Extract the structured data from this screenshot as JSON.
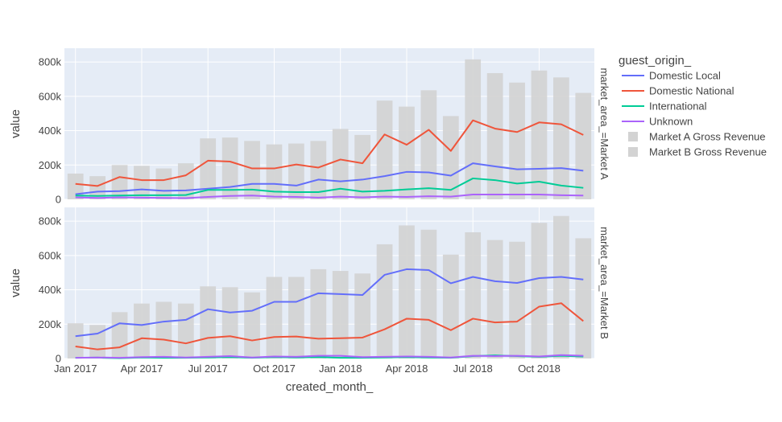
{
  "chart_data": {
    "type": "bar+line",
    "xlabel": "created_month_",
    "ylabel": "value",
    "x": [
      "2017-01",
      "2017-02",
      "2017-03",
      "2017-04",
      "2017-05",
      "2017-06",
      "2017-07",
      "2017-08",
      "2017-09",
      "2017-10",
      "2017-11",
      "2017-12",
      "2018-01",
      "2018-02",
      "2018-03",
      "2018-04",
      "2018-05",
      "2018-06",
      "2018-07",
      "2018-08",
      "2018-09",
      "2018-10",
      "2018-11",
      "2018-12"
    ],
    "x_tick_labels": [
      "Jan 2017",
      "Apr 2017",
      "Jul 2017",
      "Oct 2017",
      "Jan 2018",
      "Apr 2018",
      "Jul 2018",
      "Oct 2018"
    ],
    "y_tick_labels": [
      "0",
      "200k",
      "400k",
      "600k",
      "800k"
    ],
    "ylim": [
      0,
      880000
    ],
    "grid": true,
    "legend": {
      "title": "guest_origin_",
      "position": "right",
      "items": [
        {
          "name": "Domestic Local",
          "color": "#636EFA",
          "kind": "line"
        },
        {
          "name": "Domestic National",
          "color": "#EF553B",
          "kind": "line"
        },
        {
          "name": "International",
          "color": "#00CC96",
          "kind": "line"
        },
        {
          "name": "Unknown",
          "color": "#AB63FA",
          "kind": "line"
        },
        {
          "name": "Market A Gross Revenue",
          "color": "#D3D3D3",
          "kind": "bar"
        },
        {
          "name": "Market B Gross Revenue",
          "color": "#D3D3D3",
          "kind": "bar"
        }
      ]
    },
    "facets": [
      {
        "label": "market_area_=Market A",
        "bar_name": "Market A Gross Revenue",
        "bars": [
          150000,
          135000,
          200000,
          195000,
          180000,
          210000,
          355000,
          360000,
          340000,
          320000,
          325000,
          340000,
          410000,
          375000,
          575000,
          540000,
          635000,
          485000,
          815000,
          735000,
          680000,
          750000,
          710000,
          620000
        ],
        "series": [
          {
            "name": "Domestic Local",
            "values": [
              30000,
              45000,
              48000,
              58000,
              50000,
              52000,
              62000,
              72000,
              90000,
              90000,
              80000,
              115000,
              105000,
              115000,
              135000,
              160000,
              157000,
              138000,
              210000,
              192000,
              175000,
              178000,
              182000,
              167000
            ]
          },
          {
            "name": "Domestic National",
            "values": [
              90000,
              78000,
              130000,
              112000,
              112000,
              140000,
              225000,
              220000,
              180000,
              180000,
              203000,
              185000,
              232000,
              210000,
              378000,
              318000,
              405000,
              282000,
              460000,
              412000,
              392000,
              448000,
              437000,
              375000
            ]
          },
          {
            "name": "International",
            "values": [
              22000,
              20000,
              22000,
              24000,
              24000,
              25000,
              55000,
              55000,
              57000,
              45000,
              42000,
              42000,
              62000,
              45000,
              50000,
              58000,
              65000,
              55000,
              122000,
              112000,
              92000,
              103000,
              80000,
              67000
            ]
          },
          {
            "name": "Unknown",
            "values": [
              12000,
              8000,
              12000,
              10000,
              8000,
              7000,
              14000,
              20000,
              22000,
              16000,
              14000,
              10000,
              16000,
              12000,
              16000,
              14000,
              18000,
              16000,
              28000,
              28000,
              28000,
              28000,
              24000,
              22000
            ]
          }
        ]
      },
      {
        "label": "market_area_=Market B",
        "bar_name": "Market B Gross Revenue",
        "bars": [
          205000,
          195000,
          270000,
          320000,
          330000,
          320000,
          420000,
          415000,
          385000,
          475000,
          475000,
          520000,
          510000,
          495000,
          665000,
          775000,
          750000,
          605000,
          735000,
          690000,
          680000,
          790000,
          830000,
          700000
        ],
        "series": [
          {
            "name": "Domestic Local",
            "values": [
              130000,
              145000,
              205000,
              195000,
              215000,
              225000,
              287000,
              268000,
              278000,
              330000,
              330000,
              380000,
              375000,
              370000,
              487000,
              520000,
              515000,
              438000,
              475000,
              450000,
              440000,
              468000,
              475000,
              460000
            ]
          },
          {
            "name": "Domestic National",
            "values": [
              70000,
              53000,
              65000,
              118000,
              110000,
              88000,
              120000,
              130000,
              105000,
              125000,
              128000,
              115000,
              118000,
              122000,
              170000,
              232000,
              225000,
              165000,
              232000,
              210000,
              215000,
              302000,
              322000,
              218000
            ]
          },
          {
            "name": "International",
            "values": [
              4000,
              5000,
              2000,
              6000,
              4000,
              4000,
              6000,
              8000,
              4000,
              8000,
              6000,
              8000,
              4000,
              4000,
              6000,
              8000,
              6000,
              4000,
              14000,
              18000,
              14000,
              10000,
              16000,
              12000
            ]
          },
          {
            "name": "Unknown",
            "values": [
              4000,
              6000,
              4000,
              8000,
              10000,
              6000,
              10000,
              14000,
              6000,
              12000,
              10000,
              16000,
              16000,
              8000,
              10000,
              12000,
              10000,
              6000,
              16000,
              14000,
              16000,
              12000,
              20000,
              16000
            ]
          }
        ]
      }
    ]
  }
}
